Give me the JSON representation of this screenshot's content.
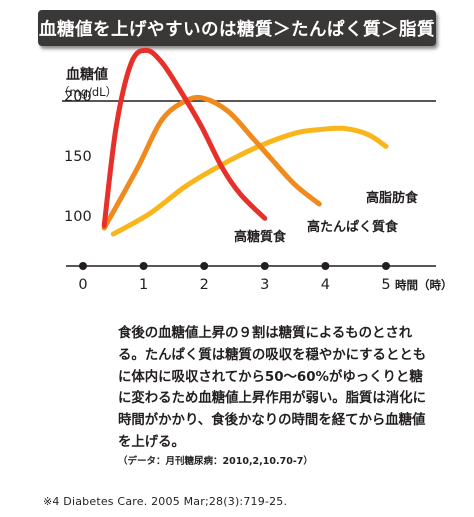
{
  "banner": {
    "title": "血糖値を上げやすいのは糖質＞たんぱく質＞脂質"
  },
  "chart_data": {
    "type": "line",
    "ylabel": "血糖値",
    "yunit": "（mg/dL）",
    "xunit": "時間（時）",
    "x_ticks": [
      0,
      1,
      2,
      3,
      4,
      5
    ],
    "y_ticks": [
      100,
      150,
      200
    ],
    "xlim": [
      0,
      5.6
    ],
    "ylim": [
      50,
      262
    ],
    "grid": false,
    "series": [
      {
        "name": "高糖質食",
        "color": "#e8302a",
        "x": [
          0.35,
          0.55,
          0.8,
          1.05,
          1.3,
          1.6,
          1.95,
          2.3,
          2.6,
          3.0
        ],
        "y": [
          92,
          175,
          228,
          238,
          228,
          205,
          175,
          140,
          118,
          98
        ]
      },
      {
        "name": "高たんぱく質食",
        "color": "#f08a1d",
        "x": [
          0.35,
          0.9,
          1.3,
          1.7,
          2.0,
          2.4,
          2.8,
          3.1,
          3.5,
          3.9
        ],
        "y": [
          90,
          140,
          180,
          196,
          198,
          187,
          165,
          148,
          126,
          110
        ]
      },
      {
        "name": "高脂肪食",
        "color": "#f9b51c",
        "x": [
          0.5,
          1.1,
          1.7,
          2.3,
          2.9,
          3.5,
          3.9,
          4.3,
          4.7,
          5.0
        ],
        "y": [
          85,
          102,
          125,
          143,
          158,
          169,
          172,
          173,
          168,
          158
        ]
      }
    ]
  },
  "description": {
    "text": "食後の血糖値上昇の９割は糖質によるものとされる。たんぱく質は糖質の吸収を穏やかにするとともに体内に吸収されてから50～60%がゆっくりと糖に変わるため血糖値上昇作用が弱い。脂質は消化に時間がかかり、食後かなりの時間を経てから血糖値を上げる。",
    "source": "（データ：月刊糖尿病：2010,2,10.70-7）"
  },
  "reference": "※4  Diabetes Care. 2005 Mar;28(3):719-25."
}
